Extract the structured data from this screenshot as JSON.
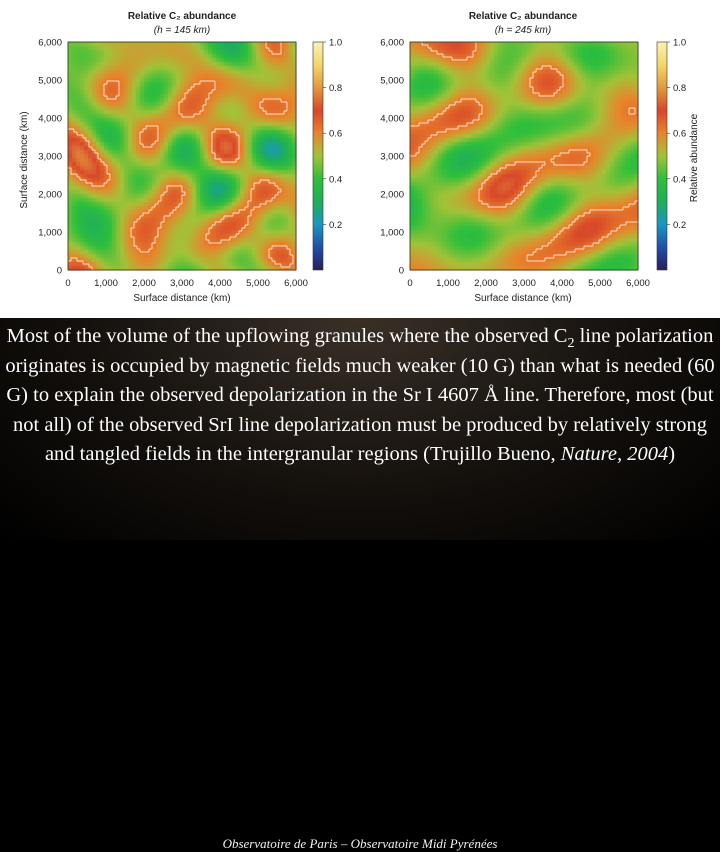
{
  "chart_data": [
    {
      "type": "heatmap",
      "title": "Relative C₂ abundance",
      "subtitle": "(h = 145 km)",
      "xlabel": "Surface distance (km)",
      "ylabel": "Surface distance (km)",
      "xlim": [
        0,
        6000
      ],
      "ylim": [
        0,
        6000
      ],
      "x_ticks": [
        "0",
        "1,000",
        "2,000",
        "3,000",
        "4,000",
        "5,000",
        "6,000"
      ],
      "y_ticks": [
        "0",
        "1,000",
        "2,000",
        "3,000",
        "4,000",
        "5,000",
        "6,000"
      ],
      "colorbar": {
        "ticks": [
          "1.0",
          "0.8",
          "0.6",
          "0.4",
          "0.2"
        ],
        "range": [
          0,
          1.0
        ],
        "label": ""
      },
      "seed": 11
    },
    {
      "type": "heatmap",
      "title": "Relative C₂ abundance",
      "subtitle": "(h = 245 km)",
      "xlabel": "Surface distance (km)",
      "ylabel": "",
      "xlim": [
        0,
        6000
      ],
      "ylim": [
        0,
        6000
      ],
      "x_ticks": [
        "0",
        "1,000",
        "2,000",
        "3,000",
        "4,000",
        "5,000",
        "6,000"
      ],
      "y_ticks": [
        "0",
        "1,000",
        "2,000",
        "3,000",
        "4,000",
        "5,000",
        "6,000"
      ],
      "colorbar": {
        "ticks": [
          "1.0",
          "0.8",
          "0.6",
          "0.4",
          "0.2"
        ],
        "range": [
          0,
          1.0
        ],
        "label": "Relative abundance"
      },
      "seed": 29
    }
  ],
  "caption": {
    "part1": "Most of the volume of the upflowing granules where the observed C",
    "sub": "2",
    "part2": " line polarization originates is occupied by magnetic fields much weaker (10 G) than what is needed (60 G) to explain the observed depolarization in the Sr I 4607 Å line. Therefore, most (but not all) of the observed SrI line depolarization must be produced by relatively strong and tangled fields in the intergranular regions (Trujillo Bueno, ",
    "journal": "Nature, 2004",
    "part3": ")"
  },
  "footer": "Observatoire de Paris – Observatoire Midi Pyrénées",
  "colors": {
    "colormap": [
      "#2a1e5c",
      "#1f4fa8",
      "#1a96c2",
      "#1fae5a",
      "#2fbf3a",
      "#a2c238",
      "#e8842c",
      "#d8472a",
      "#e39a3c",
      "#f4d66a",
      "#fbf2b0"
    ],
    "contour": "#ffffff"
  }
}
